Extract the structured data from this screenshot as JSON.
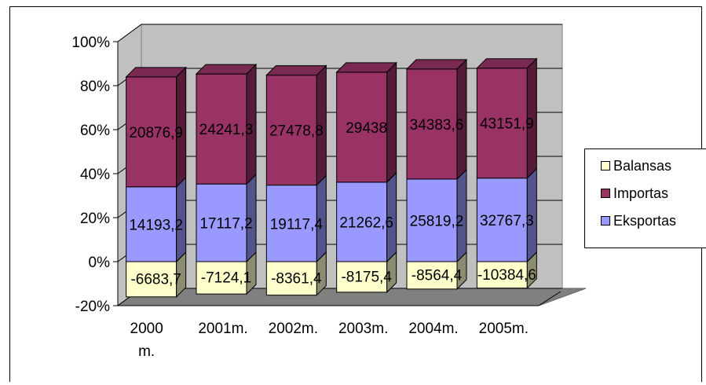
{
  "chart_data": {
    "type": "bar",
    "stacked": "percent",
    "three_d": true,
    "categories": [
      "2000 m.",
      "2001m.",
      "2002m.",
      "2003m.",
      "2004m.",
      "2005m."
    ],
    "series": [
      {
        "name": "Balansas",
        "values": [
          -6683.7,
          -7124.1,
          -8361.4,
          -8175.4,
          -8564.4,
          -10384.6
        ],
        "labels": [
          "-6683,7",
          "-7124,1",
          "-8361,4",
          "-8175,4",
          "-8564,4",
          "-10384,6"
        ],
        "color": "#FFFFCC"
      },
      {
        "name": "Eksportas",
        "values": [
          14193.2,
          17117.2,
          19117.4,
          21262.6,
          25819.2,
          32767.3
        ],
        "labels": [
          "14193,2",
          "17117,2",
          "19117,4",
          "21262,6",
          "25819,2",
          "32767,3"
        ],
        "color": "#9999FF"
      },
      {
        "name": "Importas",
        "values": [
          20876.9,
          24241.3,
          27478.8,
          29438,
          34383.6,
          43151.9
        ],
        "labels": [
          "20876,9",
          "24241,3",
          "27478,8",
          "29438",
          "34383,6",
          "43151,9"
        ],
        "color": "#993366"
      }
    ],
    "yticks": [
      "100%",
      "80%",
      "60%",
      "40%",
      "20%",
      "0%",
      "-20%"
    ],
    "ylim": [
      -0.2,
      1.0
    ],
    "grid": true,
    "legend": {
      "position": "right",
      "order": [
        "Balansas",
        "Importas",
        "Eksportas"
      ]
    }
  }
}
